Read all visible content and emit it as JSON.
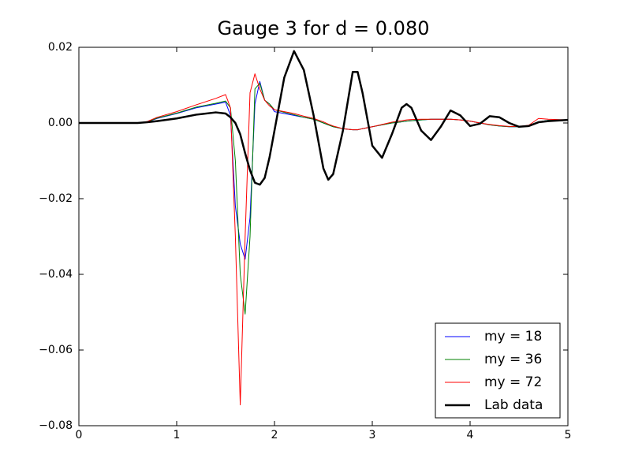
{
  "chart_data": {
    "type": "line",
    "title": "Gauge 3 for d = 0.080",
    "x": [
      0,
      0.2,
      0.4,
      0.6,
      0.7,
      0.8,
      1.0,
      1.2,
      1.4,
      1.5,
      1.55,
      1.6,
      1.65,
      1.7,
      1.75,
      1.8,
      1.85,
      1.9,
      1.95,
      2.0,
      2.1,
      2.2,
      2.3,
      2.4,
      2.5,
      2.55,
      2.6,
      2.7,
      2.8,
      2.85,
      2.9,
      3.0,
      3.1,
      3.2,
      3.3,
      3.35,
      3.4,
      3.5,
      3.6,
      3.7,
      3.8,
      3.9,
      4.0,
      4.1,
      4.2,
      4.3,
      4.4,
      4.5,
      4.6,
      4.7,
      4.8,
      5.0
    ],
    "series": [
      {
        "name": "my = 18",
        "color": "#0000ff",
        "width": 1,
        "values": [
          0,
          0,
          0,
          0,
          0.0003,
          0.0012,
          0.0025,
          0.004,
          0.005,
          0.0055,
          0.002,
          -0.022,
          -0.032,
          -0.036,
          -0.025,
          0.005,
          0.011,
          0.006,
          0.005,
          0.003,
          0.0025,
          0.002,
          0.0015,
          0.001,
          0,
          -0.0005,
          -0.001,
          -0.0015,
          -0.0018,
          -0.0018,
          -0.0015,
          -0.001,
          -0.0005,
          0,
          0.0003,
          0.0005,
          0.0006,
          0.0008,
          0.001,
          0.001,
          0.001,
          0.0008,
          0.0005,
          0,
          -0.0005,
          -0.0008,
          -0.001,
          -0.001,
          -0.0008,
          0.0003,
          0.0007,
          0.0008
        ]
      },
      {
        "name": "my = 36",
        "color": "#008000",
        "width": 1,
        "values": [
          0,
          0,
          0,
          0,
          0.0003,
          0.0013,
          0.0026,
          0.0042,
          0.0052,
          0.0058,
          0.004,
          -0.01,
          -0.04,
          -0.0505,
          -0.03,
          0.009,
          0.0105,
          0.006,
          0.005,
          0.0035,
          0.0028,
          0.0022,
          0.0015,
          0.001,
          0,
          -0.0005,
          -0.001,
          -0.0015,
          -0.0018,
          -0.0018,
          -0.0015,
          -0.001,
          -0.0005,
          0,
          0.0003,
          0.0005,
          0.0006,
          0.0008,
          0.001,
          0.001,
          0.001,
          0.0008,
          0.0005,
          0,
          -0.0005,
          -0.0008,
          -0.001,
          -0.001,
          -0.0008,
          0.0003,
          0.0007,
          0.0008
        ]
      },
      {
        "name": "my = 72",
        "color": "#ff0000",
        "width": 1,
        "values": [
          0,
          0,
          0,
          0,
          0.0004,
          0.0015,
          0.003,
          0.0048,
          0.0065,
          0.0075,
          0.004,
          -0.03,
          -0.0745,
          -0.03,
          0.008,
          0.013,
          0.009,
          0.006,
          0.0045,
          0.0035,
          0.003,
          0.0025,
          0.0018,
          0.0012,
          0.0003,
          -0.0003,
          -0.0008,
          -0.0015,
          -0.0018,
          -0.0018,
          -0.0015,
          -0.001,
          -0.0004,
          0.0002,
          0.0006,
          0.0008,
          0.0009,
          0.001,
          0.001,
          0.001,
          0.001,
          0.0008,
          0.0005,
          0,
          -0.0004,
          -0.0007,
          -0.0009,
          -0.0009,
          -0.0006,
          0.0012,
          0.001,
          0.0008
        ]
      },
      {
        "name": "Lab data",
        "color": "#000000",
        "width": 2.5,
        "values": [
          0,
          0,
          0,
          0,
          0.0002,
          0.0005,
          0.0012,
          0.0022,
          0.0028,
          0.0025,
          0.0015,
          0,
          -0.003,
          -0.008,
          -0.0125,
          -0.0158,
          -0.0163,
          -0.0145,
          -0.009,
          -0.002,
          0.012,
          0.019,
          0.014,
          0.002,
          -0.012,
          -0.015,
          -0.0135,
          -0.002,
          0.0135,
          0.0135,
          0.008,
          -0.006,
          -0.0092,
          -0.003,
          0.004,
          0.005,
          0.004,
          -0.002,
          -0.0045,
          -0.001,
          0.0033,
          0.002,
          -0.0008,
          -0.0002,
          0.0018,
          0.0015,
          0,
          -0.001,
          -0.0008,
          0.0002,
          0.0005,
          0.0008
        ]
      }
    ],
    "xlim": [
      0,
      5
    ],
    "xticks": [
      0,
      1,
      2,
      3,
      4,
      5
    ],
    "ylim": [
      -0.08,
      0.02
    ],
    "yticks": [
      {
        "value": -0.08,
        "label": "−0.08"
      },
      {
        "value": -0.06,
        "label": "−0.06"
      },
      {
        "value": -0.04,
        "label": "−0.04"
      },
      {
        "value": -0.02,
        "label": "−0.02"
      },
      {
        "value": 0,
        "label": "0.00"
      },
      {
        "value": 0.02,
        "label": "0.02"
      }
    ],
    "legend": "lower right",
    "grid": false
  }
}
